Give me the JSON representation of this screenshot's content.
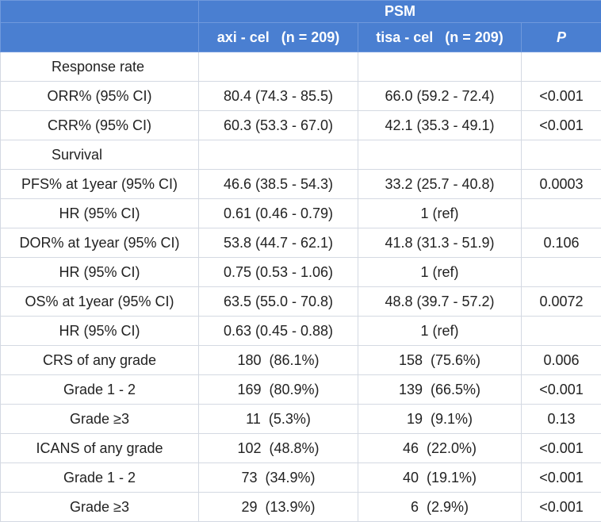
{
  "header": {
    "group_label": "PSM",
    "columns": [
      "",
      "axi - cel   (n = 209)",
      "tisa - cel   (n = 209)",
      "P"
    ]
  },
  "rows": [
    {
      "label": "Response rate",
      "axi": "",
      "tisa": "",
      "p": ""
    },
    {
      "label": "ORR% (95% CI)",
      "axi": "80.4 (74.3 - 85.5)",
      "tisa": "66.0 (59.2 - 72.4)",
      "p": "<0.001"
    },
    {
      "label": "CRR% (95% CI)",
      "axi": "60.3 (53.3 - 67.0)",
      "tisa": "42.1 (35.3 - 49.1)",
      "p": "<0.001"
    },
    {
      "label": "Survival",
      "axi": "",
      "tisa": "",
      "p": ""
    },
    {
      "label": "PFS% at 1year (95% CI)",
      "axi": "46.6 (38.5 - 54.3)",
      "tisa": "33.2 (25.7 - 40.8)",
      "p": "0.0003"
    },
    {
      "label": "HR (95% CI)",
      "axi": "0.61 (0.46 - 0.79)",
      "tisa": "1 (ref)",
      "p": ""
    },
    {
      "label": "DOR% at 1year (95% CI)",
      "axi": "53.8 (44.7 - 62.1)",
      "tisa": "41.8 (31.3 - 51.9)",
      "p": "0.106"
    },
    {
      "label": "HR (95% CI)",
      "axi": "0.75 (0.53 - 1.06)",
      "tisa": "1 (ref)",
      "p": ""
    },
    {
      "label": "OS% at 1year (95% CI)",
      "axi": "63.5 (55.0 - 70.8)",
      "tisa": "48.8 (39.7 - 57.2)",
      "p": "0.0072"
    },
    {
      "label": "HR (95% CI)",
      "axi": "0.63 (0.45 - 0.88)",
      "tisa": "1 (ref)",
      "p": ""
    },
    {
      "label": "CRS of any grade",
      "axi": "180  (86.1%)",
      "tisa": "158  (75.6%)",
      "p": "0.006"
    },
    {
      "label": "Grade 1 - 2",
      "axi": "169  (80.9%)",
      "tisa": "139  (66.5%)",
      "p": "<0.001"
    },
    {
      "label": "Grade ≥3",
      "axi": "11  (5.3%)",
      "tisa": "19  (9.1%)",
      "p": "0.13"
    },
    {
      "label": "ICANS of any grade",
      "axi": "102  (48.8%)",
      "tisa": "46  (22.0%)",
      "p": "<0.001"
    },
    {
      "label": "Grade 1 - 2",
      "axi": "73  (34.9%)",
      "tisa": "40  (19.1%)",
      "p": "<0.001"
    },
    {
      "label": "Grade ≥3",
      "axi": "29  (13.9%)",
      "tisa": "6  (2.9%)",
      "p": "<0.001"
    }
  ]
}
